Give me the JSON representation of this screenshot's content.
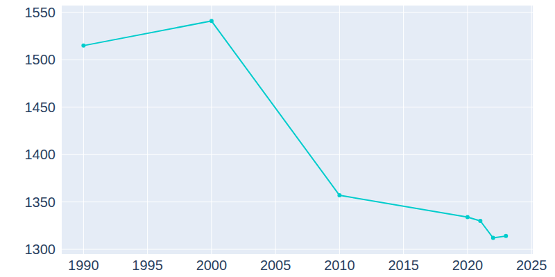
{
  "chart_data": {
    "type": "line",
    "x": [
      1990,
      2000,
      2010,
      2020,
      2021,
      2022,
      2023
    ],
    "values": [
      1515,
      1541,
      1357,
      1334,
      1330,
      1312,
      1314
    ],
    "color": "#00cccc",
    "marker": "circle",
    "xlim": [
      1988.3,
      2025.1
    ],
    "xticks": [
      1990,
      1995,
      2000,
      2005,
      2010,
      2015,
      2020,
      2025
    ],
    "ylim": [
      1294.9,
      1557.3
    ],
    "yticks": [
      1300,
      1350,
      1400,
      1450,
      1500,
      1550
    ],
    "grid": true
  }
}
